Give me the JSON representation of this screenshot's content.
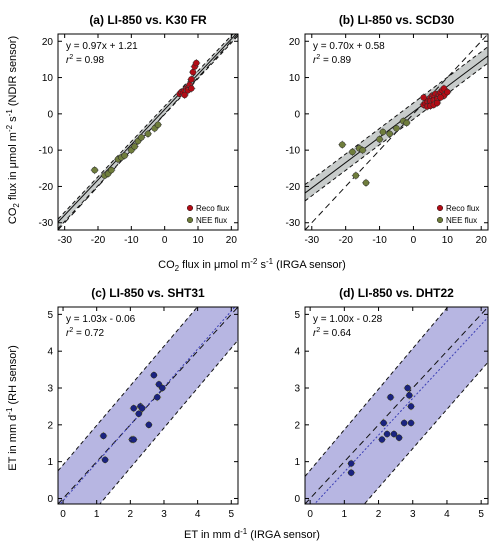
{
  "chart_data": [
    {
      "type": "scatter",
      "panel": "a",
      "title": "(a) LI-850 vs. K30 FR",
      "xlim": [
        -32,
        22
      ],
      "ylim": [
        -32,
        22
      ],
      "xticks": [
        -30,
        -20,
        -10,
        0,
        10,
        20
      ],
      "yticks": [
        -30,
        -20,
        -10,
        0,
        10,
        20
      ],
      "equation": "y = 0.97x + 1.21",
      "r2_label": "r",
      "r2_sup": "2",
      "r2_value": " = 0.98",
      "fit": {
        "slope": 0.97,
        "intercept": 1.21
      },
      "band": [
        [
          -32,
          -31.6,
          -29.0
        ],
        [
          22,
          21.5,
          23.5
        ]
      ],
      "band_color": "#c8cccb",
      "legend": [
        {
          "label": "Reco flux",
          "color": "#b30c16"
        },
        {
          "label": "NEE flux",
          "color": "#6f7d3c"
        }
      ],
      "series": [
        {
          "name": "Reco flux",
          "color": "#b30c16",
          "points": [
            [
              4.5,
              5.5
            ],
            [
              5,
              6
            ],
            [
              5.5,
              5.8
            ],
            [
              6,
              6.5
            ],
            [
              6.5,
              7
            ],
            [
              7,
              7.2
            ],
            [
              7.5,
              8
            ],
            [
              8,
              9.5
            ],
            [
              8.5,
              11.5
            ],
            [
              9,
              13
            ],
            [
              9.5,
              14
            ],
            [
              6,
              5.2
            ],
            [
              7,
              6.5
            ],
            [
              8,
              7
            ]
          ]
        },
        {
          "name": "NEE flux",
          "color": "#6f7d3c",
          "points": [
            [
              -21,
              -15.5
            ],
            [
              -18,
              -17
            ],
            [
              -17,
              -16.5
            ],
            [
              -16,
              -15.5
            ],
            [
              -14,
              -12.5
            ],
            [
              -13,
              -12
            ],
            [
              -12,
              -11.5
            ],
            [
              -10,
              -10
            ],
            [
              -9,
              -9
            ],
            [
              -8,
              -7.5
            ],
            [
              -7,
              -6.5
            ],
            [
              -5,
              -5.5
            ],
            [
              -3,
              -4
            ],
            [
              -2,
              -3
            ]
          ]
        }
      ]
    },
    {
      "type": "scatter",
      "panel": "b",
      "title": "(b) LI-850 vs. SCD30",
      "xlim": [
        -32,
        22
      ],
      "ylim": [
        -32,
        22
      ],
      "xticks": [
        -30,
        -20,
        -10,
        0,
        10,
        20
      ],
      "yticks": [
        -30,
        -20,
        -10,
        0,
        10,
        20
      ],
      "equation": "y = 0.70x + 0.58",
      "r2_label": "r",
      "r2_sup": "2",
      "r2_value": " = 0.89",
      "fit": {
        "slope": 0.7,
        "intercept": 0.58
      },
      "band": [
        [
          -32,
          -24.0,
          -19.5
        ],
        [
          22,
          14.0,
          18.5
        ]
      ],
      "band_color": "#c8cccb",
      "legend": [
        {
          "label": "Reco flux",
          "color": "#b30c16"
        },
        {
          "label": "NEE flux",
          "color": "#6f7d3c"
        }
      ],
      "series": [
        {
          "name": "Reco flux",
          "color": "#b30c16",
          "points": [
            [
              3,
              2.5
            ],
            [
              3.5,
              3
            ],
            [
              4,
              3.5
            ],
            [
              4.5,
              4
            ],
            [
              5,
              4.5
            ],
            [
              5.5,
              5
            ],
            [
              6,
              5
            ],
            [
              6.5,
              5.5
            ],
            [
              7,
              4.5
            ],
            [
              7.5,
              5.5
            ],
            [
              8,
              6
            ],
            [
              8.5,
              6.5
            ],
            [
              9,
              5
            ],
            [
              5,
              3.5
            ],
            [
              6,
              3.8
            ],
            [
              7,
              4
            ],
            [
              8,
              4.5
            ],
            [
              4,
              2
            ],
            [
              5,
              2.2
            ],
            [
              6,
              2.5
            ],
            [
              7,
              3
            ],
            [
              3,
              4.5
            ],
            [
              9,
              7
            ],
            [
              10,
              6
            ]
          ]
        },
        {
          "name": "NEE flux",
          "color": "#6f7d3c",
          "points": [
            [
              -21,
              -8.5
            ],
            [
              -18,
              -10.5
            ],
            [
              -16,
              -9.5
            ],
            [
              -15,
              -10
            ],
            [
              -17,
              -17
            ],
            [
              -14,
              -19
            ],
            [
              -10,
              -7
            ],
            [
              -9,
              -5
            ],
            [
              -7,
              -5.5
            ],
            [
              -5,
              -4
            ],
            [
              -3,
              -2
            ],
            [
              -2,
              -2.5
            ]
          ]
        }
      ]
    },
    {
      "type": "scatter",
      "panel": "c",
      "title": "(c) LI-850 vs. SHT31",
      "xlim": [
        -0.15,
        5.2
      ],
      "ylim": [
        -0.15,
        5.2
      ],
      "xticks": [
        0,
        1,
        2,
        3,
        4,
        5
      ],
      "yticks": [
        0,
        1,
        2,
        3,
        4,
        5
      ],
      "equation": "y = 1.03x - 0.06",
      "r2_label": "r",
      "r2_sup": "2",
      "r2_value": " = 0.72",
      "fit": {
        "slope": 1.03,
        "intercept": -0.06
      },
      "band": [
        [
          -0.15,
          -1.5,
          0.75
        ],
        [
          5.2,
          4.3,
          6.5
        ]
      ],
      "band_color": "#b7b6e2",
      "legend": [],
      "series": [
        {
          "name": "",
          "color": "#1a2380",
          "points": [
            [
              1.2,
              1.7
            ],
            [
              1.25,
              1.05
            ],
            [
              2.05,
              1.6
            ],
            [
              2.1,
              1.6
            ],
            [
              2.1,
              2.45
            ],
            [
              2.25,
              2.3
            ],
            [
              2.3,
              2.5
            ],
            [
              2.35,
              2.45
            ],
            [
              2.55,
              2.0
            ],
            [
              2.7,
              3.35
            ],
            [
              2.8,
              2.75
            ],
            [
              2.85,
              3.1
            ],
            [
              2.95,
              3.0
            ]
          ]
        }
      ]
    },
    {
      "type": "scatter",
      "panel": "d",
      "title": "(d) LI-850 vs. DHT22",
      "xlim": [
        -0.15,
        5.2
      ],
      "ylim": [
        -0.15,
        5.2
      ],
      "xticks": [
        0,
        1,
        2,
        3,
        4,
        5
      ],
      "yticks": [
        0,
        1,
        2,
        3,
        4,
        5
      ],
      "equation": "y = 1.00x - 0.28",
      "r2_label": "r",
      "r2_sup": "2",
      "r2_value": " = 0.64",
      "fit": {
        "slope": 1.0,
        "intercept": -0.28
      },
      "band": [
        [
          -0.15,
          -2.0,
          0.6
        ],
        [
          5.2,
          3.7,
          6.5
        ]
      ],
      "band_color": "#b7b6e2",
      "legend": [],
      "series": [
        {
          "name": "",
          "color": "#1a2380",
          "points": [
            [
              1.2,
              0.95
            ],
            [
              1.2,
              0.7
            ],
            [
              2.1,
              1.6
            ],
            [
              2.15,
              2.05
            ],
            [
              2.25,
              1.75
            ],
            [
              2.35,
              2.75
            ],
            [
              2.45,
              1.75
            ],
            [
              2.6,
              1.65
            ],
            [
              2.75,
              2.05
            ],
            [
              2.85,
              3.0
            ],
            [
              2.9,
              2.8
            ],
            [
              2.95,
              2.5
            ],
            [
              2.95,
              2.05
            ]
          ]
        }
      ]
    }
  ],
  "axes": {
    "xlabel_top_pre": "CO",
    "xlabel_top_sub": "2",
    "xlabel_top_mid": " flux in μmol m",
    "xlabel_top_sup1": "-2",
    "xlabel_top_mid2": " s",
    "xlabel_top_sup2": "-1",
    "xlabel_top_post": " (IRGA sensor)",
    "ylabel_top_pre": "CO",
    "ylabel_top_sub": "2",
    "ylabel_top_mid": " flux in μmol m",
    "ylabel_top_sup1": "-2",
    "ylabel_top_mid2": " s",
    "ylabel_top_sup2": "-1",
    "ylabel_top_post": " (NDIR sensor)",
    "xlabel_bottom_pre": "ET in mm d",
    "xlabel_bottom_sup": "-1",
    "xlabel_bottom_post": " (IRGA sensor)",
    "ylabel_bottom_pre": "ET in mm d",
    "ylabel_bottom_sup": "-1",
    "ylabel_bottom_post": " (RH sensor)"
  }
}
